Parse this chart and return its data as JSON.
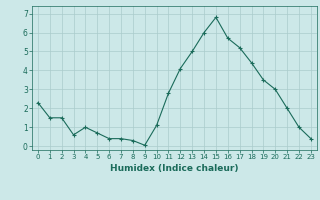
{
  "x": [
    0,
    1,
    2,
    3,
    4,
    5,
    6,
    7,
    8,
    9,
    10,
    11,
    12,
    13,
    14,
    15,
    16,
    17,
    18,
    19,
    20,
    21,
    22,
    23
  ],
  "y": [
    2.3,
    1.5,
    1.5,
    0.6,
    1.0,
    0.7,
    0.4,
    0.4,
    0.3,
    0.05,
    1.1,
    2.8,
    4.1,
    5.0,
    6.0,
    6.8,
    5.7,
    5.2,
    4.4,
    3.5,
    3.0,
    2.0,
    1.0,
    0.4
  ],
  "xlabel": "Humidex (Indice chaleur)",
  "ylim": [
    -0.2,
    7.4
  ],
  "xlim": [
    -0.5,
    23.5
  ],
  "line_color": "#1a6b5a",
  "marker_color": "#1a6b5a",
  "bg_color": "#cce8e8",
  "grid_color": "#aacccc",
  "tick_color": "#1a6b5a",
  "xlabel_color": "#1a6b5a",
  "yticks": [
    0,
    1,
    2,
    3,
    4,
    5,
    6,
    7
  ],
  "xticks": [
    0,
    1,
    2,
    3,
    4,
    5,
    6,
    7,
    8,
    9,
    10,
    11,
    12,
    13,
    14,
    15,
    16,
    17,
    18,
    19,
    20,
    21,
    22,
    23
  ]
}
